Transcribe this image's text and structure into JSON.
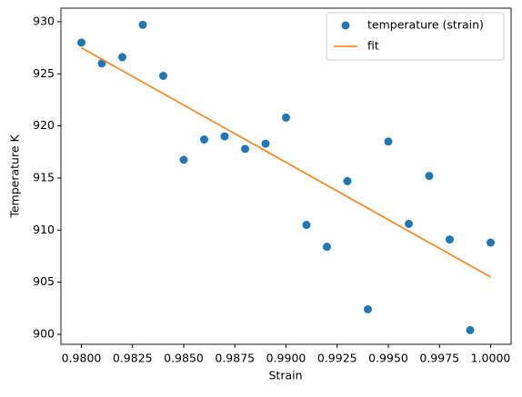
{
  "chart_data": {
    "type": "scatter",
    "xlabel": "Strain",
    "ylabel": "Temperature K",
    "xlim": [
      0.979,
      1.001
    ],
    "ylim": [
      899.04,
      931.3
    ],
    "xticks": [
      {
        "value": 0.98,
        "label": "0.9800"
      },
      {
        "value": 0.9825,
        "label": "0.9825"
      },
      {
        "value": 0.985,
        "label": "0.9850"
      },
      {
        "value": 0.9875,
        "label": "0.9875"
      },
      {
        "value": 0.99,
        "label": "0.9900"
      },
      {
        "value": 0.9925,
        "label": "0.9925"
      },
      {
        "value": 0.995,
        "label": "0.9950"
      },
      {
        "value": 0.9975,
        "label": "0.9975"
      },
      {
        "value": 1.0,
        "label": "1.0000"
      }
    ],
    "yticks": [
      900,
      905,
      910,
      915,
      920,
      925,
      930
    ],
    "legend": "upper right",
    "series": [
      {
        "name": "temperature (strain)",
        "color": "#1f77b4",
        "type": "scatter",
        "x": [
          0.98,
          0.981,
          0.982,
          0.983,
          0.984,
          0.985,
          0.986,
          0.987,
          0.988,
          0.989,
          0.99,
          0.991,
          0.992,
          0.993,
          0.994,
          0.995,
          0.996,
          0.997,
          0.998,
          0.999,
          1.0
        ],
        "values": [
          928.0,
          926.0,
          926.6,
          929.7,
          924.8,
          916.75,
          918.7,
          919.0,
          917.8,
          918.3,
          920.8,
          910.5,
          908.4,
          914.7,
          902.4,
          918.5,
          910.6,
          915.2,
          909.1,
          900.4,
          908.8
        ]
      },
      {
        "name": "fit",
        "color": "#ff7f0e",
        "type": "line",
        "x": [
          0.98,
          1.0
        ],
        "values": [
          927.5,
          905.5
        ]
      }
    ]
  }
}
